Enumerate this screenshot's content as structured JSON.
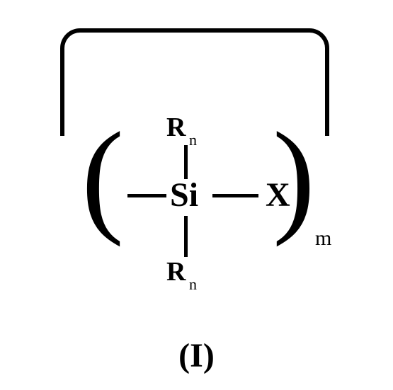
{
  "structure": {
    "type": "chemical-structure",
    "center_atom": "Si",
    "substituent_right": "X",
    "substituent_label": "R",
    "substituent_subscript": "n",
    "repeat_subscript": "m",
    "bracket_left": "(",
    "bracket_right": ")",
    "bonds": [
      "top",
      "bottom",
      "left",
      "right"
    ],
    "colors": {
      "stroke": "#000000",
      "background": "#ffffff"
    },
    "line_width": 6,
    "font_family": "Times New Roman",
    "atom_fontsize": 48,
    "label_fontsize": 38,
    "subscript_fontsize": 22,
    "caption_fontsize": 48
  },
  "caption": "(I)"
}
